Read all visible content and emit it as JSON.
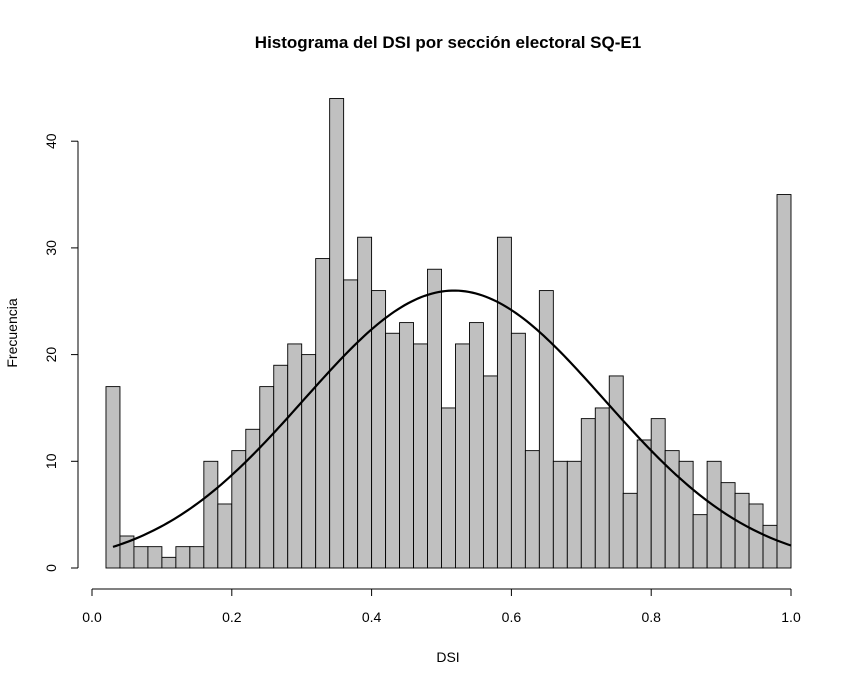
{
  "chart_data": {
    "type": "bar",
    "subtype": "histogram",
    "title": "Histograma del DSI por sección electoral SQ-E1",
    "xlabel": "DSI",
    "ylabel": "Frecuencia",
    "xlim": [
      0.0,
      1.0
    ],
    "ylim": [
      0,
      45
    ],
    "x_ticks": [
      0.0,
      0.2,
      0.4,
      0.6,
      0.8,
      1.0
    ],
    "x_tick_labels": [
      "0.0",
      "0.2",
      "0.4",
      "0.6",
      "0.8",
      "1.0"
    ],
    "y_ticks": [
      0,
      10,
      20,
      30,
      40
    ],
    "y_tick_labels": [
      "0",
      "10",
      "20",
      "30",
      "40"
    ],
    "bin_start": 0.02,
    "bin_width": 0.02,
    "values": [
      17,
      3,
      2,
      2,
      1,
      2,
      2,
      10,
      6,
      11,
      13,
      17,
      19,
      21,
      20,
      29,
      44,
      27,
      31,
      26,
      22,
      23,
      21,
      28,
      15,
      21,
      23,
      18,
      31,
      22,
      11,
      26,
      10,
      10,
      14,
      15,
      18,
      7,
      12,
      14,
      11,
      10,
      5,
      10,
      8,
      7,
      6,
      4,
      35
    ],
    "bar_color": "#c0c0c0",
    "bar_border": "#000000",
    "density_curve": {
      "type": "normal",
      "mean": 0.518,
      "sd": 0.215,
      "peak": 26,
      "x_range": [
        0.03,
        1.0
      ],
      "color": "#000000"
    },
    "grid": false,
    "legend": "none"
  }
}
